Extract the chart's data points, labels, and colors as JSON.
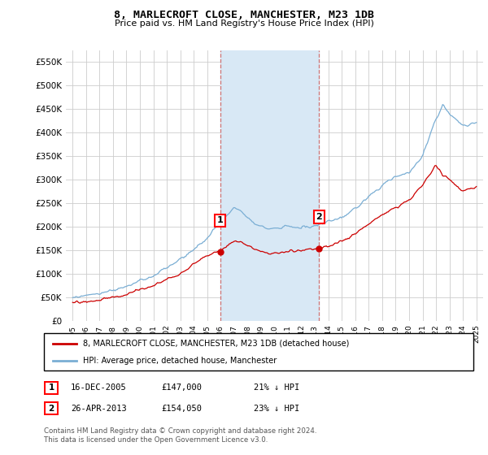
{
  "title": "8, MARLECROFT CLOSE, MANCHESTER, M23 1DB",
  "subtitle": "Price paid vs. HM Land Registry's House Price Index (HPI)",
  "ylim": [
    0,
    575000
  ],
  "yticks": [
    0,
    50000,
    100000,
    150000,
    200000,
    250000,
    300000,
    350000,
    400000,
    450000,
    500000,
    550000
  ],
  "ytick_labels": [
    "£0",
    "£50K",
    "£100K",
    "£150K",
    "£200K",
    "£250K",
    "£300K",
    "£350K",
    "£400K",
    "£450K",
    "£500K",
    "£550K"
  ],
  "xlim_start": 1994.5,
  "xlim_end": 2025.5,
  "xticks": [
    1995,
    1996,
    1997,
    1998,
    1999,
    2000,
    2001,
    2002,
    2003,
    2004,
    2005,
    2006,
    2007,
    2008,
    2009,
    2010,
    2011,
    2012,
    2013,
    2014,
    2015,
    2016,
    2017,
    2018,
    2019,
    2020,
    2021,
    2022,
    2023,
    2024,
    2025
  ],
  "hpi_color": "#7aaed4",
  "price_color": "#cc0000",
  "sale1_x": 2005.96,
  "sale1_y": 147000,
  "sale2_x": 2013.32,
  "sale2_y": 154050,
  "shade_start": 2005.96,
  "shade_end": 2013.32,
  "shade_color": "#d8e8f5",
  "vline_color": "#cc6666",
  "legend_line1": "8, MARLECROFT CLOSE, MANCHESTER, M23 1DB (detached house)",
  "legend_line2": "HPI: Average price, detached house, Manchester",
  "table_row1": [
    "1",
    "16-DEC-2005",
    "£147,000",
    "21% ↓ HPI"
  ],
  "table_row2": [
    "2",
    "26-APR-2013",
    "£154,050",
    "23% ↓ HPI"
  ],
  "footnote": "Contains HM Land Registry data © Crown copyright and database right 2024.\nThis data is licensed under the Open Government Licence v3.0."
}
